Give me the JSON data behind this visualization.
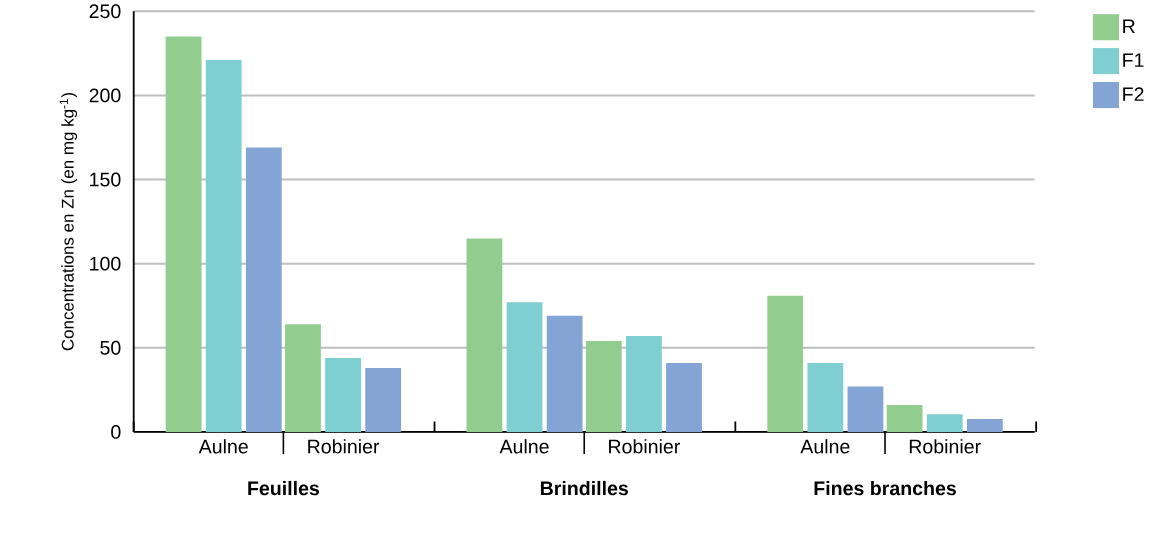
{
  "chart_data": {
    "type": "bar",
    "ylabel": "Concentrations en Zn (en mg kg$^{-1}$)",
    "categories": [
      "Aulne",
      "Robinier",
      "Aulne",
      "Robinier",
      "Aulne",
      "Robinier"
    ],
    "annotations": [
      "Feuilles",
      "Brindilles",
      "Fines branches"
    ],
    "series": [
      {
        "name": "R",
        "color": "#92cc8f",
        "values": [
          235,
          64,
          115,
          54,
          81,
          16
        ]
      },
      {
        "name": "F1",
        "color": "#7fcfd2",
        "values": [
          221,
          44,
          77,
          57,
          41,
          10.5
        ]
      },
      {
        "name": "F2",
        "color": "#84a4d6",
        "values": [
          169,
          38,
          69,
          41,
          27,
          7.7
        ]
      }
    ],
    "ylim": [
      0,
      250
    ],
    "yticks": [
      0,
      50,
      100,
      150,
      200,
      250
    ],
    "grid": "y",
    "legend": "right"
  }
}
